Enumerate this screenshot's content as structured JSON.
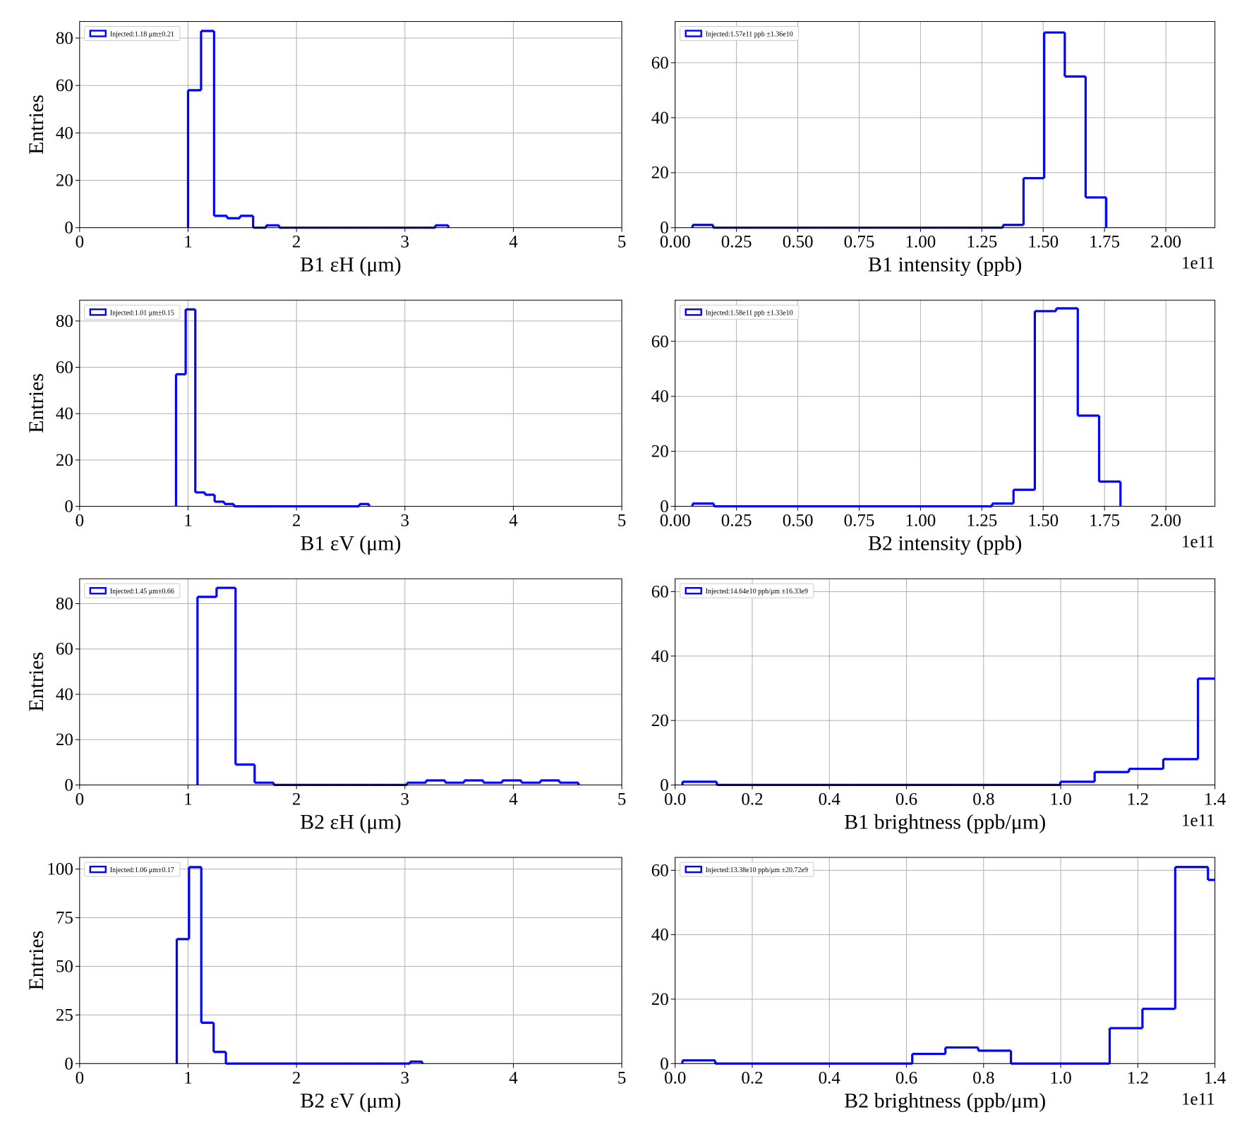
{
  "chart_data": [
    {
      "type": "histogram",
      "xlabel": "B1 εH (μm)",
      "ylabel": "Entries",
      "bins": [
        1.0,
        1.12,
        1.24,
        1.36,
        1.48,
        1.6,
        1.72,
        1.84,
        1.96,
        2.08,
        2.2,
        2.32,
        2.44,
        2.56,
        2.68,
        2.8,
        2.92,
        3.04,
        3.16,
        3.28,
        3.4
      ],
      "series": [
        {
          "name": "Injected:1.18 μm±0.21",
          "color": "#0000ff",
          "values": [
            58,
            83,
            5,
            4,
            5,
            0,
            1,
            0,
            0,
            0,
            0,
            0,
            0,
            0,
            0,
            0,
            0,
            0,
            0,
            1
          ]
        }
      ],
      "xlim": [
        0,
        5
      ],
      "xticks": [
        0,
        1,
        2,
        3,
        4,
        5
      ],
      "ylim": [
        0,
        87
      ],
      "yticks": [
        0,
        20,
        40,
        60,
        80
      ],
      "grid": true,
      "legend": "upper left"
    },
    {
      "type": "histogram",
      "xlabel": "B1 intensity (ppb)",
      "x_offset_label": "1e11",
      "bins": [
        0.071,
        0.155,
        0.24,
        0.324,
        0.408,
        0.493,
        0.577,
        0.661,
        0.745,
        0.83,
        0.914,
        0.998,
        1.083,
        1.167,
        1.251,
        1.336,
        1.42,
        1.504,
        1.588,
        1.673,
        1.757
      ],
      "series": [
        {
          "name": "Injected:1.57e11 ppb ±1.36e10",
          "color": "#0000ff",
          "values": [
            1,
            0,
            0,
            0,
            0,
            0,
            0,
            0,
            0,
            0,
            0,
            0,
            0,
            0,
            0,
            1,
            18,
            71,
            55,
            11
          ]
        }
      ],
      "xlim": [
        0,
        2.2
      ],
      "xticks": [
        {
          "value": 0,
          "label": "0.00"
        },
        0.25,
        {
          "value": 0.5,
          "label": "0.50"
        },
        0.75,
        {
          "value": 1,
          "label": "1.00"
        },
        1.25,
        {
          "value": 1.5,
          "label": "1.50"
        },
        1.75,
        {
          "value": 2,
          "label": "2.00"
        }
      ],
      "ylim": [
        0,
        75
      ],
      "yticks": [
        0,
        20,
        40,
        60
      ],
      "grid": true,
      "legend": "upper left"
    },
    {
      "type": "histogram",
      "xlabel": "B1 εV (μm)",
      "ylabel": "Entries",
      "bins": [
        0.889,
        0.978,
        1.067,
        1.156,
        1.245,
        1.334,
        1.423,
        1.512,
        1.601,
        1.69,
        1.779,
        1.868,
        1.957,
        2.046,
        2.135,
        2.224,
        2.313,
        2.402,
        2.491,
        2.58,
        2.669
      ],
      "series": [
        {
          "name": "Injected:1.01 μm±0.15",
          "color": "#0000ff",
          "values": [
            57,
            85,
            6,
            5,
            2,
            1,
            0,
            0,
            0,
            0,
            0,
            0,
            0,
            0,
            0,
            0,
            0,
            0,
            0,
            1
          ]
        }
      ],
      "xlim": [
        0,
        5
      ],
      "xticks": [
        0,
        1,
        2,
        3,
        4,
        5
      ],
      "ylim": [
        0,
        89
      ],
      "yticks": [
        0,
        20,
        40,
        60,
        80
      ],
      "grid": true,
      "legend": "upper left"
    },
    {
      "type": "histogram",
      "xlabel": "B2 intensity (ppb)",
      "x_offset_label": "1e11",
      "bins": [
        0.071,
        0.158,
        0.245,
        0.333,
        0.42,
        0.507,
        0.594,
        0.681,
        0.769,
        0.856,
        0.943,
        1.03,
        1.117,
        1.205,
        1.292,
        1.379,
        1.466,
        1.553,
        1.641,
        1.728,
        1.815
      ],
      "series": [
        {
          "name": "Injected:1.58e11 ppb ±1.33e10",
          "color": "#0000ff",
          "values": [
            1,
            0,
            0,
            0,
            0,
            0,
            0,
            0,
            0,
            0,
            0,
            0,
            0,
            0,
            1,
            6,
            71,
            72,
            33,
            9
          ]
        }
      ],
      "xlim": [
        0,
        2.2
      ],
      "xticks": [
        {
          "value": 0,
          "label": "0.00"
        },
        0.25,
        {
          "value": 0.5,
          "label": "0.50"
        },
        0.75,
        {
          "value": 1,
          "label": "1.00"
        },
        1.25,
        {
          "value": 1.5,
          "label": "1.50"
        },
        1.75,
        {
          "value": 2,
          "label": "2.00"
        }
      ],
      "ylim": [
        0,
        75
      ],
      "yticks": [
        0,
        20,
        40,
        60
      ],
      "grid": true,
      "legend": "upper left"
    },
    {
      "type": "histogram",
      "xlabel": "B2 εH (μm)",
      "ylabel": "Entries",
      "bins": [
        1.087,
        1.263,
        1.438,
        1.614,
        1.79,
        1.966,
        2.141,
        2.317,
        2.493,
        2.668,
        2.844,
        3.02,
        3.195,
        3.371,
        3.547,
        3.723,
        3.898,
        4.074,
        4.25,
        4.425,
        4.601
      ],
      "series": [
        {
          "name": "Injected:1.45 μm±0.66",
          "color": "#0000ff",
          "values": [
            83,
            87,
            9,
            1,
            0,
            0,
            0,
            0,
            0,
            0,
            0,
            1,
            2,
            1,
            2,
            1,
            2,
            1,
            2,
            1
          ]
        }
      ],
      "xlim": [
        0,
        5
      ],
      "xticks": [
        0,
        1,
        2,
        3,
        4,
        5
      ],
      "ylim": [
        0,
        91
      ],
      "yticks": [
        0,
        20,
        40,
        60,
        80
      ],
      "grid": true,
      "legend": "upper left"
    },
    {
      "type": "histogram",
      "xlabel": "B1 brightness (ppb/μm)",
      "x_offset_label": "1e11",
      "bins": [
        0.019,
        0.108,
        0.197,
        0.286,
        0.375,
        0.465,
        0.554,
        0.643,
        0.732,
        0.821,
        0.91,
        0.999,
        1.088,
        1.177,
        1.266,
        1.356,
        1.445
      ],
      "series": [
        {
          "name": "Injected:14.64e10 ppb/μm ±16.33e9",
          "color": "#0000ff",
          "values": [
            1,
            0,
            0,
            0,
            0,
            0,
            0,
            0,
            0,
            0,
            0,
            1,
            4,
            5,
            8,
            33
          ]
        }
      ],
      "xlim": [
        0,
        1.4
      ],
      "xticks": [
        {
          "value": 0,
          "label": "0.0"
        },
        0.2,
        0.4,
        0.6,
        0.8,
        {
          "value": 1,
          "label": "1.0"
        },
        1.2,
        1.4
      ],
      "ylim": [
        0,
        64
      ],
      "yticks": [
        0,
        20,
        40,
        60
      ],
      "grid": true,
      "legend": "upper left"
    },
    {
      "type": "histogram",
      "xlabel": "B2 εV (μm)",
      "ylabel": "Entries",
      "bins": [
        0.896,
        1.009,
        1.122,
        1.236,
        1.349,
        1.462,
        1.575,
        1.688,
        1.802,
        1.915,
        2.028,
        2.141,
        2.254,
        2.368,
        2.481,
        2.594,
        2.707,
        2.82,
        2.934,
        3.047,
        3.16
      ],
      "series": [
        {
          "name": "Injected:1.06 μm±0.17",
          "color": "#0000ff",
          "values": [
            64,
            101,
            21,
            6,
            0,
            0,
            0,
            0,
            0,
            0,
            0,
            0,
            0,
            0,
            0,
            0,
            0,
            0,
            0,
            1
          ]
        }
      ],
      "xlim": [
        0,
        5
      ],
      "xticks": [
        0,
        1,
        2,
        3,
        4,
        5
      ],
      "ylim": [
        0,
        106
      ],
      "yticks": [
        0,
        25,
        50,
        75,
        100
      ],
      "grid": true,
      "legend": "upper left"
    },
    {
      "type": "histogram",
      "xlabel": "B2 brightness (ppb/μm)",
      "x_offset_label": "1e11",
      "bins": [
        0.019,
        0.104,
        0.189,
        0.275,
        0.36,
        0.445,
        0.53,
        0.615,
        0.701,
        0.786,
        0.871,
        0.956,
        1.041,
        1.127,
        1.212,
        1.297,
        1.382,
        1.467
      ],
      "series": [
        {
          "name": "Injected:13.38e10 ppb/μm ±20.72e9",
          "color": "#0000ff",
          "values": [
            1,
            0,
            0,
            0,
            0,
            0,
            0,
            3,
            5,
            4,
            0,
            0,
            0,
            11,
            17,
            61,
            57
          ]
        }
      ],
      "xlim": [
        0,
        1.4
      ],
      "xticks": [
        {
          "value": 0,
          "label": "0.0"
        },
        0.2,
        0.4,
        0.6,
        0.8,
        {
          "value": 1,
          "label": "1.0"
        },
        1.2,
        1.4
      ],
      "ylim": [
        0,
        64
      ],
      "yticks": [
        0,
        20,
        40,
        60
      ],
      "grid": true,
      "legend": "upper left"
    }
  ]
}
